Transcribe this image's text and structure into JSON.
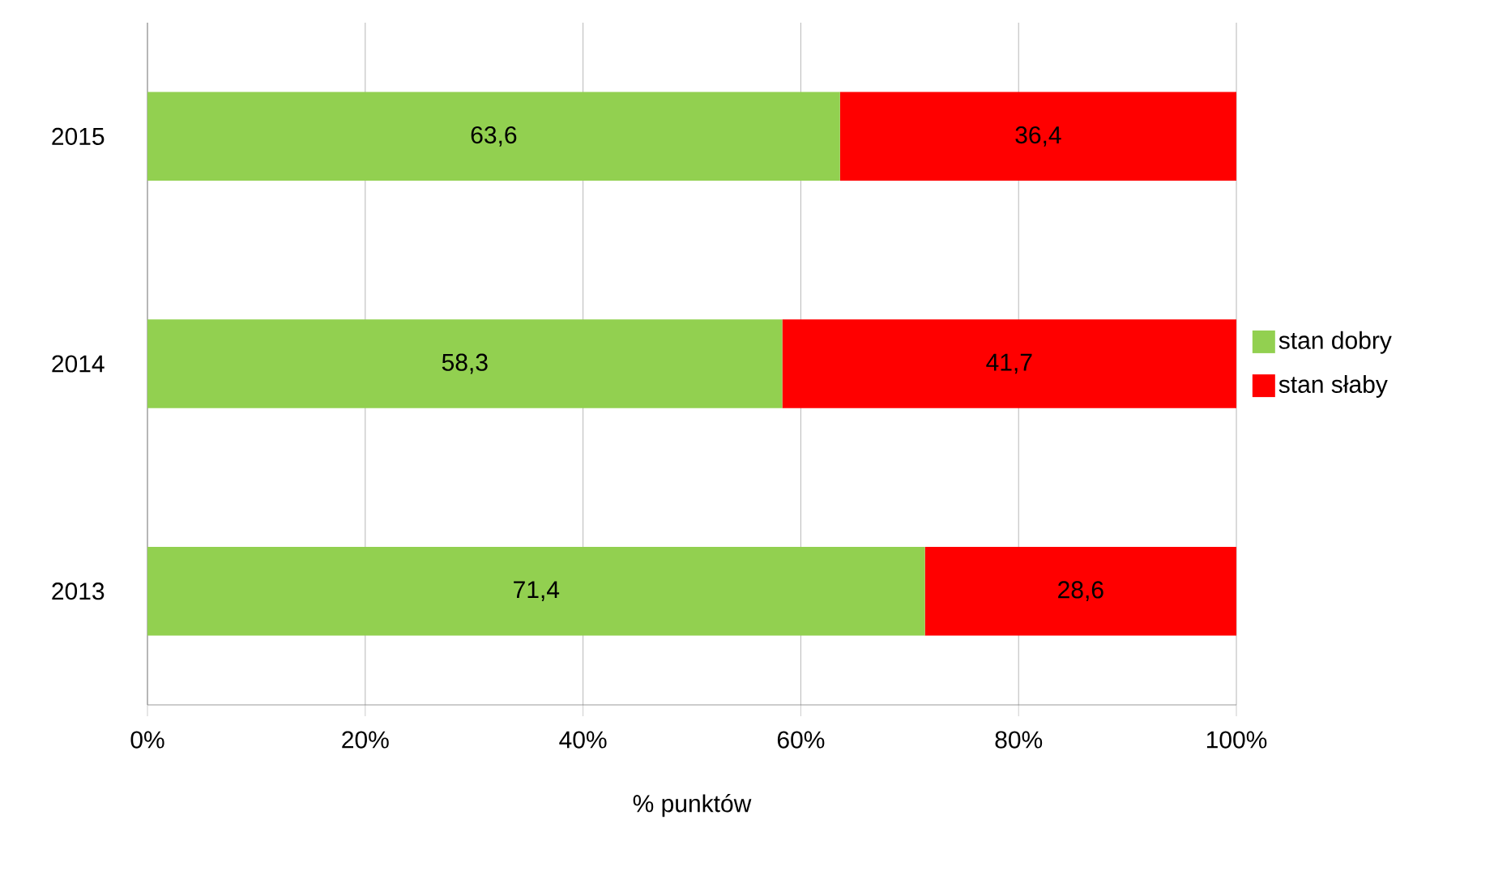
{
  "chart_data": {
    "type": "bar",
    "orientation": "horizontal",
    "stacked": true,
    "categories": [
      "2015",
      "2014",
      "2013"
    ],
    "series": [
      {
        "name": "stan dobry",
        "color": "#92d050",
        "values": [
          63.6,
          58.3,
          71.4
        ],
        "value_labels": [
          "63,6",
          "58,3",
          "71,4"
        ]
      },
      {
        "name": "stan słaby",
        "color": "#ff0000",
        "values": [
          36.4,
          41.7,
          28.6
        ],
        "value_labels": [
          "36,4",
          "41,7",
          "28,6"
        ]
      }
    ],
    "xlabel": "% punktów",
    "xlim": [
      0,
      100
    ],
    "xticks": [
      {
        "value": 0,
        "label": "0%"
      },
      {
        "value": 20,
        "label": "20%"
      },
      {
        "value": 40,
        "label": "40%"
      },
      {
        "value": 60,
        "label": "60%"
      },
      {
        "value": 80,
        "label": "80%"
      },
      {
        "value": 100,
        "label": "100%"
      }
    ],
    "grid": "x",
    "legend": "right"
  }
}
